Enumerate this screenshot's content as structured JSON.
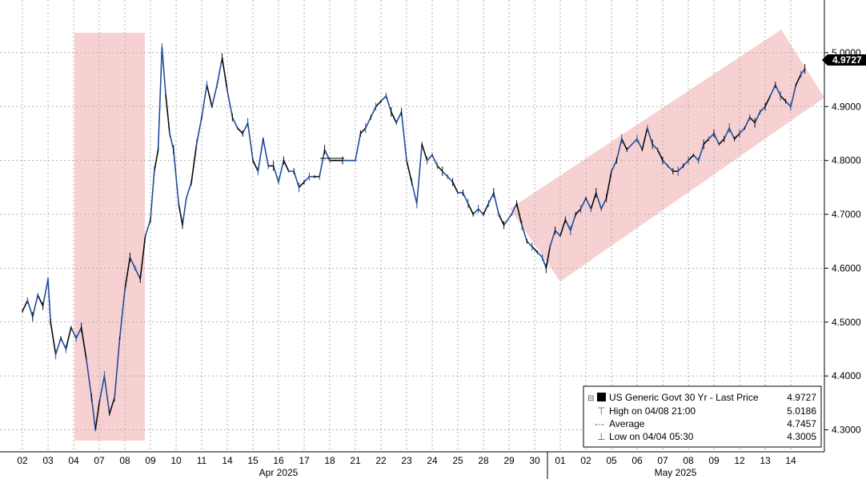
{
  "chart_data": {
    "type": "line",
    "ylim": [
      4.28,
      5.08
    ],
    "y_ticks": [
      "4.3000",
      "4.4000",
      "4.5000",
      "4.6000",
      "4.7000",
      "4.8000",
      "4.9000",
      "5.0000"
    ],
    "x_tick_labels": [
      "02",
      "03",
      "04",
      "07",
      "08",
      "09",
      "10",
      "11",
      "14",
      "15",
      "16",
      "17",
      "18",
      "21",
      "22",
      "23",
      "24",
      "25",
      "28",
      "29",
      "30",
      "01",
      "02",
      "05",
      "06",
      "07",
      "08",
      "09",
      "12",
      "13",
      "14"
    ],
    "month_labels": [
      "Apr 2025",
      "May 2025"
    ],
    "last_price_label": "4.9727",
    "grid": true,
    "legend_position": "bottom-right",
    "legend": {
      "title": "US Generic Govt 30 Yr - Last Price",
      "title_value": "4.9727",
      "rows": [
        {
          "label": "High on 04/08 21:00",
          "value": "5.0186"
        },
        {
          "label": "Average",
          "value": "4.7457"
        },
        {
          "label": "Low on 04/04 05:30",
          "value": "4.3005"
        }
      ]
    },
    "colors": {
      "line": "#1f4e9c",
      "line_dark": "#0a0a0a",
      "highlight": "#f4b6b6",
      "grid": "#b0b0b0"
    },
    "series": [
      {
        "values": [
          [
            0,
            4.52
          ],
          [
            0.2,
            4.54
          ],
          [
            0.4,
            4.51
          ],
          [
            0.6,
            4.55
          ],
          [
            0.8,
            4.53
          ],
          [
            1.0,
            4.58
          ],
          [
            1.1,
            4.5
          ],
          [
            1.3,
            4.44
          ],
          [
            1.5,
            4.47
          ],
          [
            1.7,
            4.45
          ],
          [
            1.9,
            4.49
          ],
          [
            2.1,
            4.47
          ],
          [
            2.3,
            4.49
          ],
          [
            2.5,
            4.43
          ],
          [
            2.7,
            4.36
          ],
          [
            2.85,
            4.3
          ],
          [
            3.0,
            4.35
          ],
          [
            3.2,
            4.4
          ],
          [
            3.4,
            4.33
          ],
          [
            3.6,
            4.36
          ],
          [
            3.8,
            4.47
          ],
          [
            4.0,
            4.56
          ],
          [
            4.2,
            4.62
          ],
          [
            4.4,
            4.6
          ],
          [
            4.6,
            4.58
          ],
          [
            4.8,
            4.66
          ],
          [
            5.0,
            4.69
          ],
          [
            5.15,
            4.78
          ],
          [
            5.3,
            4.82
          ],
          [
            5.45,
            5.01
          ],
          [
            5.6,
            4.92
          ],
          [
            5.75,
            4.85
          ],
          [
            5.9,
            4.82
          ],
          [
            6.1,
            4.72
          ],
          [
            6.25,
            4.68
          ],
          [
            6.4,
            4.73
          ],
          [
            6.6,
            4.76
          ],
          [
            6.8,
            4.83
          ],
          [
            7.0,
            4.88
          ],
          [
            7.2,
            4.94
          ],
          [
            7.4,
            4.9
          ],
          [
            7.6,
            4.94
          ],
          [
            7.8,
            4.99
          ],
          [
            8.0,
            4.93
          ],
          [
            8.2,
            4.88
          ],
          [
            8.4,
            4.86
          ],
          [
            8.6,
            4.85
          ],
          [
            8.8,
            4.87
          ],
          [
            9.0,
            4.8
          ],
          [
            9.2,
            4.78
          ],
          [
            9.4,
            4.84
          ],
          [
            9.6,
            4.79
          ],
          [
            9.8,
            4.79
          ],
          [
            10.0,
            4.76
          ],
          [
            10.2,
            4.8
          ],
          [
            10.4,
            4.78
          ],
          [
            10.6,
            4.78
          ],
          [
            10.8,
            4.75
          ],
          [
            11.0,
            4.76
          ],
          [
            11.2,
            4.77
          ],
          [
            11.4,
            4.77
          ],
          [
            11.6,
            4.77
          ],
          [
            11.8,
            4.82
          ],
          [
            12.0,
            4.8
          ],
          [
            12.5,
            4.8
          ],
          [
            13.0,
            4.8
          ],
          [
            13.2,
            4.85
          ],
          [
            13.4,
            4.86
          ],
          [
            13.6,
            4.88
          ],
          [
            13.8,
            4.9
          ],
          [
            14.0,
            4.91
          ],
          [
            14.2,
            4.92
          ],
          [
            14.4,
            4.89
          ],
          [
            14.6,
            4.87
          ],
          [
            14.8,
            4.89
          ],
          [
            15.0,
            4.8
          ],
          [
            15.2,
            4.76
          ],
          [
            15.4,
            4.72
          ],
          [
            15.6,
            4.83
          ],
          [
            15.8,
            4.8
          ],
          [
            16.0,
            4.81
          ],
          [
            16.2,
            4.79
          ],
          [
            16.4,
            4.78
          ],
          [
            16.6,
            4.77
          ],
          [
            16.8,
            4.76
          ],
          [
            17.0,
            4.74
          ],
          [
            17.2,
            4.74
          ],
          [
            17.4,
            4.72
          ],
          [
            17.6,
            4.7
          ],
          [
            17.8,
            4.71
          ],
          [
            18.0,
            4.7
          ],
          [
            18.2,
            4.72
          ],
          [
            18.4,
            4.74
          ],
          [
            18.6,
            4.7
          ],
          [
            18.8,
            4.68
          ],
          [
            19.1,
            4.7
          ],
          [
            19.3,
            4.72
          ],
          [
            19.5,
            4.68
          ],
          [
            19.7,
            4.65
          ],
          [
            19.9,
            4.64
          ],
          [
            20.1,
            4.63
          ],
          [
            20.3,
            4.62
          ],
          [
            20.45,
            4.6
          ],
          [
            20.6,
            4.64
          ],
          [
            20.8,
            4.67
          ],
          [
            21.0,
            4.66
          ],
          [
            21.2,
            4.69
          ],
          [
            21.4,
            4.67
          ],
          [
            21.6,
            4.7
          ],
          [
            21.8,
            4.71
          ],
          [
            22.0,
            4.73
          ],
          [
            22.2,
            4.71
          ],
          [
            22.4,
            4.74
          ],
          [
            22.6,
            4.71
          ],
          [
            22.8,
            4.73
          ],
          [
            23.0,
            4.78
          ],
          [
            23.2,
            4.8
          ],
          [
            23.4,
            4.84
          ],
          [
            23.6,
            4.82
          ],
          [
            24.0,
            4.84
          ],
          [
            24.2,
            4.82
          ],
          [
            24.4,
            4.86
          ],
          [
            24.6,
            4.83
          ],
          [
            24.8,
            4.82
          ],
          [
            25.0,
            4.8
          ],
          [
            25.2,
            4.79
          ],
          [
            25.4,
            4.78
          ],
          [
            25.6,
            4.78
          ],
          [
            25.8,
            4.79
          ],
          [
            26.0,
            4.8
          ],
          [
            26.2,
            4.81
          ],
          [
            26.4,
            4.8
          ],
          [
            26.6,
            4.83
          ],
          [
            26.8,
            4.84
          ],
          [
            27.0,
            4.85
          ],
          [
            27.2,
            4.83
          ],
          [
            27.4,
            4.84
          ],
          [
            27.6,
            4.86
          ],
          [
            27.8,
            4.84
          ],
          [
            28.0,
            4.85
          ],
          [
            28.2,
            4.86
          ],
          [
            28.4,
            4.88
          ],
          [
            28.6,
            4.87
          ],
          [
            28.8,
            4.89
          ],
          [
            29.0,
            4.9
          ],
          [
            29.2,
            4.92
          ],
          [
            29.4,
            4.94
          ],
          [
            29.6,
            4.92
          ],
          [
            29.8,
            4.91
          ],
          [
            30.0,
            4.9
          ],
          [
            30.2,
            4.94
          ],
          [
            30.4,
            4.96
          ],
          [
            30.55,
            4.97
          ]
        ]
      }
    ]
  }
}
